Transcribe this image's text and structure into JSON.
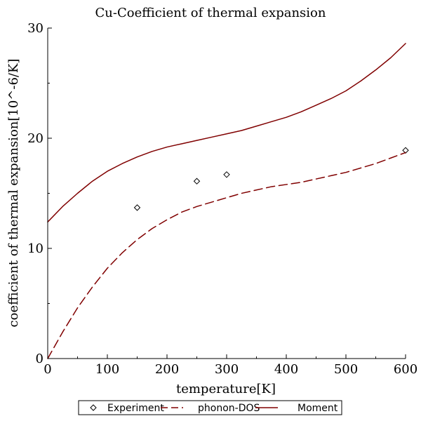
{
  "chart_data": {
    "type": "line",
    "title": "Cu-Coefficient of thermal expansion",
    "xlabel": "temperature[K]",
    "ylabel": "coefficient of thermal expansion[10^-6/K]",
    "xlim": [
      0,
      600
    ],
    "ylim": [
      0,
      30
    ],
    "xticks": [
      0,
      100,
      200,
      300,
      400,
      500,
      600
    ],
    "yticks": [
      0,
      10,
      20,
      30
    ],
    "grid": false,
    "legend_position": "bottom",
    "series": [
      {
        "name": "Experiment",
        "style": "markers",
        "marker": "diamond",
        "color": "#000000",
        "x": [
          150,
          250,
          300,
          600
        ],
        "y": [
          13.7,
          16.1,
          16.7,
          18.9
        ]
      },
      {
        "name": "phonon-DOS",
        "style": "dashed",
        "color": "#800000",
        "x": [
          0,
          25,
          50,
          75,
          100,
          125,
          150,
          175,
          200,
          225,
          250,
          275,
          300,
          325,
          350,
          375,
          400,
          425,
          450,
          475,
          500,
          525,
          550,
          575,
          600
        ],
        "y": [
          0.0,
          2.4,
          4.6,
          6.5,
          8.2,
          9.6,
          10.8,
          11.8,
          12.6,
          13.3,
          13.8,
          14.2,
          14.6,
          15.0,
          15.3,
          15.6,
          15.8,
          16.0,
          16.3,
          16.6,
          16.9,
          17.3,
          17.7,
          18.2,
          18.7
        ]
      },
      {
        "name": "Moment",
        "style": "solid",
        "color": "#800000",
        "x": [
          0,
          25,
          50,
          75,
          100,
          125,
          150,
          175,
          200,
          225,
          250,
          275,
          300,
          325,
          350,
          375,
          400,
          425,
          450,
          475,
          500,
          525,
          550,
          575,
          600
        ],
        "y": [
          12.4,
          13.8,
          15.0,
          16.1,
          17.0,
          17.7,
          18.3,
          18.8,
          19.2,
          19.5,
          19.8,
          20.1,
          20.4,
          20.7,
          21.1,
          21.5,
          21.9,
          22.4,
          23.0,
          23.6,
          24.3,
          25.2,
          26.2,
          27.3,
          28.6
        ]
      }
    ]
  }
}
